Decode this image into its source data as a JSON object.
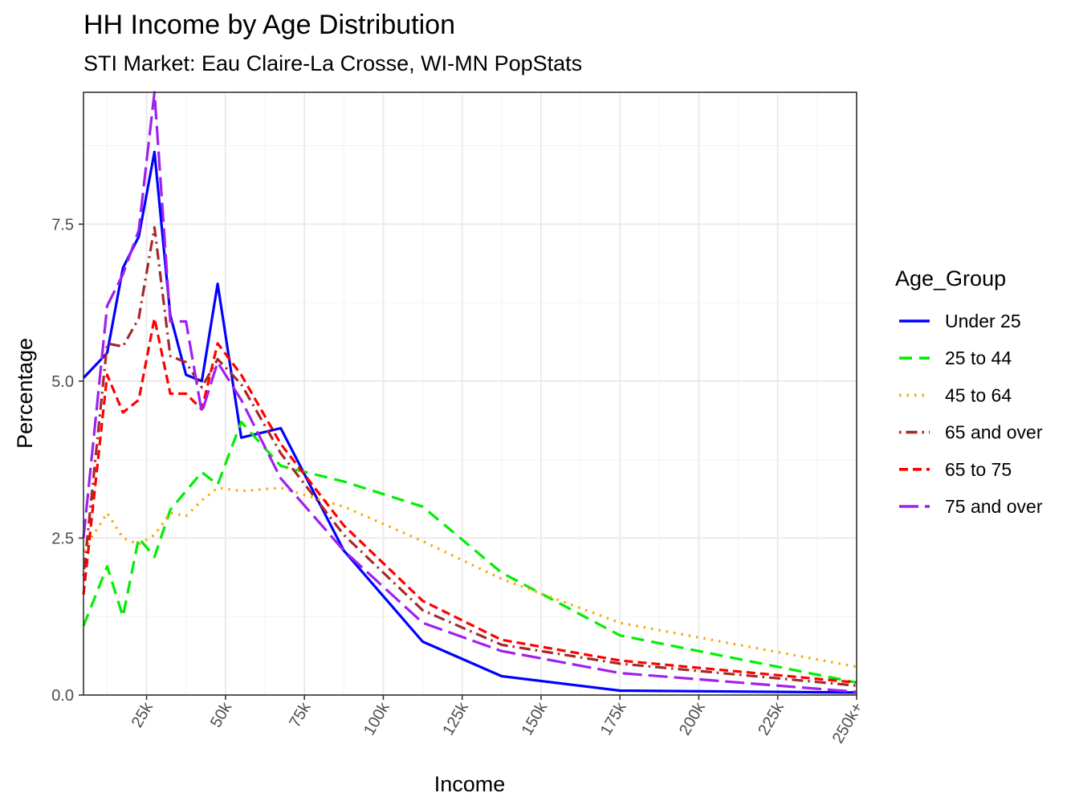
{
  "chart_data": {
    "type": "line",
    "title": "HH Income by Age Distribution",
    "subtitle": "STI Market: Eau Claire-La Crosse, WI-MN PopStats",
    "xlabel": "Income",
    "ylabel": "Percentage",
    "xlim": [
      5,
      250
    ],
    "ylim": [
      0,
      9.6
    ],
    "x_ticks": [
      {
        "value": 25,
        "label": "25k"
      },
      {
        "value": 50,
        "label": "50k"
      },
      {
        "value": 75,
        "label": "75k"
      },
      {
        "value": 100,
        "label": "100k"
      },
      {
        "value": 125,
        "label": "125k"
      },
      {
        "value": 150,
        "label": "150k"
      },
      {
        "value": 175,
        "label": "175k"
      },
      {
        "value": 200,
        "label": "200k"
      },
      {
        "value": 225,
        "label": "225k"
      },
      {
        "value": 250,
        "label": "250k+"
      }
    ],
    "y_ticks": [
      {
        "value": 0,
        "label": "0.0"
      },
      {
        "value": 2.5,
        "label": "2.5"
      },
      {
        "value": 5,
        "label": "5.0"
      },
      {
        "value": 7.5,
        "label": "7.5"
      }
    ],
    "grid": true,
    "legend": {
      "title": "Age_Group",
      "position": "right"
    },
    "x": [
      5,
      12.5,
      17.5,
      22.5,
      27.5,
      32.5,
      37.5,
      42.5,
      47.5,
      55,
      67.5,
      87.5,
      112.5,
      137.5,
      175,
      250
    ],
    "series": [
      {
        "name": "Under 25",
        "color": "#0000ff",
        "dash": "solid",
        "values": [
          5.05,
          5.45,
          6.8,
          7.3,
          8.65,
          6.05,
          5.1,
          5.0,
          6.55,
          4.1,
          4.25,
          2.3,
          0.85,
          0.3,
          0.07,
          0.04
        ]
      },
      {
        "name": "25 to 44",
        "color": "#00ee00",
        "dash": "dashed",
        "values": [
          1.1,
          2.05,
          1.25,
          2.5,
          2.2,
          2.95,
          3.25,
          3.55,
          3.35,
          4.35,
          3.65,
          3.4,
          3.0,
          1.95,
          0.95,
          0.2
        ]
      },
      {
        "name": "45 to 64",
        "color": "#ffa500",
        "dash": "dotted",
        "values": [
          2.3,
          2.9,
          2.5,
          2.4,
          2.55,
          2.9,
          2.85,
          3.1,
          3.3,
          3.25,
          3.3,
          3.0,
          2.45,
          1.85,
          1.15,
          0.45
        ]
      },
      {
        "name": "65 and over",
        "color": "#a52a2a",
        "dash": "dotdash",
        "values": [
          1.9,
          5.6,
          5.55,
          6.0,
          7.45,
          5.4,
          5.3,
          4.9,
          5.35,
          4.95,
          3.85,
          2.55,
          1.35,
          0.8,
          0.5,
          0.15
        ]
      },
      {
        "name": "65 to 75",
        "color": "#ff0000",
        "dash": "shortdash",
        "values": [
          1.6,
          5.1,
          4.5,
          4.7,
          6.0,
          4.8,
          4.8,
          4.55,
          5.6,
          5.1,
          4.0,
          2.7,
          1.5,
          0.88,
          0.55,
          0.2
        ]
      },
      {
        "name": "75 and over",
        "color": "#a020f0",
        "dash": "longdash",
        "values": [
          2.5,
          6.2,
          6.7,
          7.4,
          9.6,
          5.95,
          5.95,
          4.5,
          5.3,
          4.7,
          3.45,
          2.3,
          1.15,
          0.7,
          0.35,
          0.05
        ]
      }
    ]
  }
}
